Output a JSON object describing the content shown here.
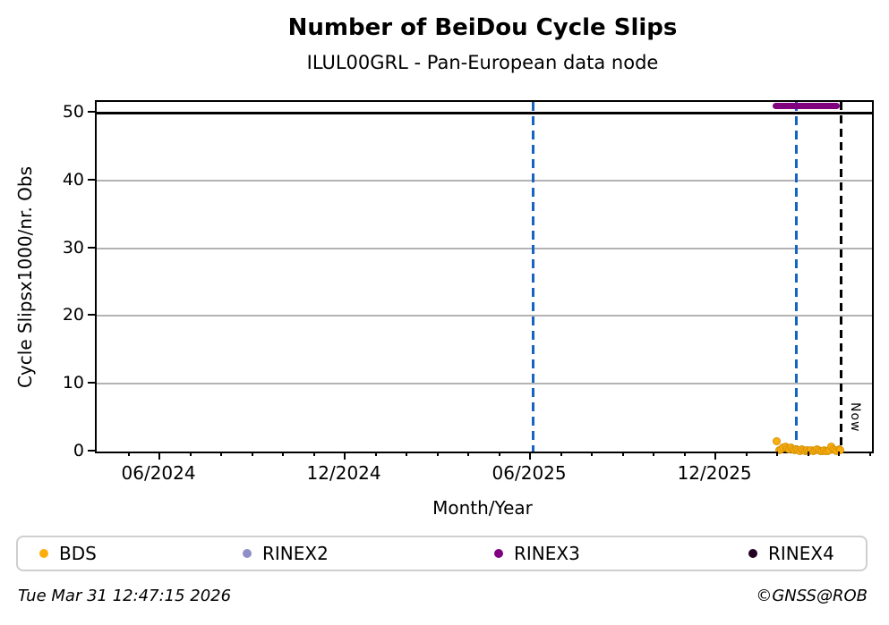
{
  "title": "Number of BeiDou Cycle Slips",
  "subtitle": "ILUL00GRL - Pan-European data node",
  "footer": {
    "timestamp": "Tue Mar 31 12:47:15 2026",
    "credit": "©GNSS@ROB"
  },
  "legend": [
    {
      "label": "BDS",
      "color": "#fcae0c"
    },
    {
      "label": "RINEX2",
      "color": "#8e8ec8"
    },
    {
      "label": "RINEX3",
      "color": "#800080"
    },
    {
      "label": "RINEX4",
      "color": "#220022"
    }
  ],
  "chart_data": {
    "type": "scatter",
    "title": "Number of BeiDou Cycle Slips",
    "subtitle": "ILUL00GRL - Pan-European data node",
    "xlabel": "Month/Year",
    "ylabel": "Cycle Slipsx1000/nr. Obs",
    "x_unit": "months since 2024-04-01",
    "xlim": [
      -0.06,
      25.04
    ],
    "ylim": [
      0,
      51.6
    ],
    "yticks": [
      0,
      10,
      20,
      30,
      40,
      50
    ],
    "xticks_major": [
      {
        "m": 2,
        "label": "06/2024"
      },
      {
        "m": 8,
        "label": "12/2024"
      },
      {
        "m": 14,
        "label": "06/2025"
      },
      {
        "m": 20,
        "label": "12/2025"
      }
    ],
    "xticks_minor": {
      "from": 1,
      "to": 25,
      "step": 1
    },
    "grid": "horizontal",
    "grid_color": "#b3b3b3",
    "annotations": {
      "cap_line_y": 50,
      "event_lines": [
        {
          "m": 14.08,
          "color": "#1565c0",
          "style": "dashed"
        },
        {
          "m": 22.6,
          "color": "#1565c0",
          "style": "dashed"
        }
      ],
      "now_line": {
        "m": 24.05,
        "label": "Now",
        "color": "#000000",
        "style": "dashed"
      }
    },
    "series": [
      {
        "name": "BDS",
        "type": "scatter",
        "color": "#fcae0c",
        "points": [
          [
            21.93,
            1.7
          ],
          [
            22.02,
            0.35
          ],
          [
            22.08,
            0.5
          ],
          [
            22.14,
            0.75
          ],
          [
            22.2,
            0.9
          ],
          [
            22.26,
            0.6
          ],
          [
            22.32,
            0.45
          ],
          [
            22.38,
            0.7
          ],
          [
            22.44,
            0.5
          ],
          [
            22.5,
            0.3
          ],
          [
            22.56,
            0.45
          ],
          [
            22.62,
            0.35
          ],
          [
            22.68,
            0.25
          ],
          [
            22.74,
            0.4
          ],
          [
            22.8,
            0.3
          ],
          [
            22.86,
            0.2
          ],
          [
            22.92,
            0.35
          ],
          [
            22.98,
            0.25
          ],
          [
            23.04,
            0.3
          ],
          [
            23.1,
            0.2
          ],
          [
            23.16,
            0.35
          ],
          [
            23.22,
            0.5
          ],
          [
            23.28,
            0.3
          ],
          [
            23.34,
            0.25
          ],
          [
            23.4,
            0.2
          ],
          [
            23.46,
            0.3
          ],
          [
            23.52,
            0.25
          ],
          [
            23.58,
            0.2
          ],
          [
            23.64,
            0.35
          ],
          [
            23.7,
            0.8
          ],
          [
            23.76,
            0.45
          ],
          [
            23.82,
            0.3
          ],
          [
            23.88,
            0.25
          ],
          [
            23.94,
            0.4
          ],
          [
            23.99,
            0.3
          ]
        ]
      },
      {
        "name": "RINEX2",
        "type": "line",
        "color": "#8e8ec8",
        "points": []
      },
      {
        "name": "RINEX3",
        "type": "line",
        "color": "#800080",
        "value": 51,
        "x_range": [
          21.83,
          23.99
        ]
      },
      {
        "name": "RINEX4",
        "type": "line",
        "color": "#220022",
        "points": []
      }
    ]
  }
}
